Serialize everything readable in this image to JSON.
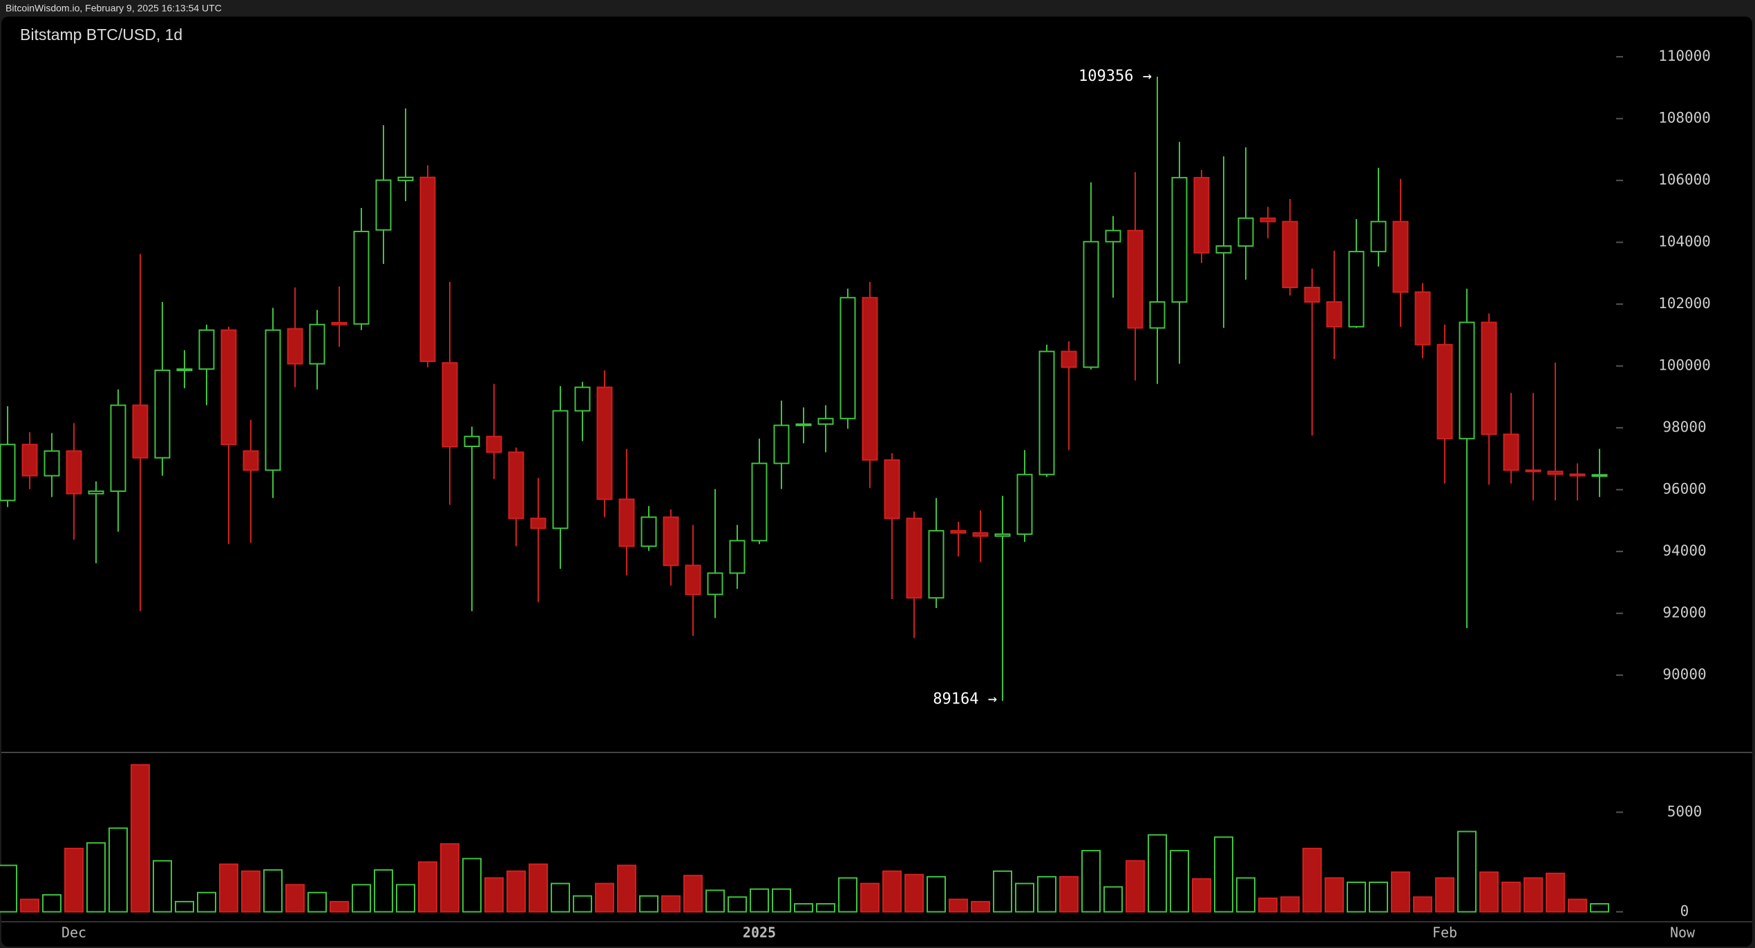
{
  "chart_data": {
    "type": "candlestick",
    "source": "BitcoinWisdom.io, February 9, 2025 16:13:54 UTC",
    "title": "Bitstamp BTC/USD, 1d",
    "categories": [
      null,
      null,
      null,
      "Dec",
      null,
      null,
      null,
      null,
      null,
      null,
      null,
      null,
      null,
      null,
      null,
      null,
      null,
      null,
      null,
      null,
      null,
      null,
      null,
      null,
      null,
      null,
      null,
      null,
      null,
      null,
      null,
      null,
      null,
      null,
      "2025",
      null,
      null,
      null,
      null,
      null,
      null,
      null,
      null,
      null,
      null,
      null,
      null,
      null,
      null,
      null,
      null,
      null,
      null,
      null,
      null,
      null,
      null,
      null,
      null,
      null,
      null,
      null,
      null,
      null,
      null,
      "Feb",
      null,
      null,
      null,
      null,
      null,
      null,
      null
    ],
    "now_label": "Now",
    "open": [
      95650,
      97460,
      96450,
      97250,
      95870,
      95950,
      98730,
      97030,
      99860,
      99900,
      101160,
      97250,
      96630,
      101200,
      100070,
      101400,
      101360,
      104400,
      106000,
      106100,
      100100,
      97400,
      97720,
      97210,
      95070,
      94750,
      98550,
      99310,
      95690,
      94170,
      95110,
      93550,
      92610,
      93300,
      94350,
      96850,
      98080,
      98120,
      98300,
      102210,
      96960,
      95070,
      92500,
      94670,
      94600,
      94500,
      94560,
      96490,
      100470,
      99960,
      104020,
      104380,
      101230,
      102070,
      106090,
      103660,
      103880,
      104780,
      104670,
      102540,
      102070,
      101270,
      103700,
      104670,
      102390,
      100690,
      97650,
      101410,
      97790,
      96630,
      96590,
      96500,
      96450
    ],
    "high": [
      98700,
      97860,
      97830,
      98150,
      96270,
      99240,
      103620,
      102070,
      100510,
      101340,
      101270,
      98260,
      101880,
      102540,
      101810,
      102570,
      105110,
      107790,
      108330,
      106490,
      102720,
      98040,
      99420,
      97360,
      96380,
      99350,
      99490,
      99860,
      97320,
      95470,
      95360,
      94860,
      96020,
      94860,
      97650,
      98880,
      98660,
      98730,
      102500,
      102720,
      97180,
      95290,
      95730,
      94960,
      95330,
      95800,
      97280,
      100690,
      100800,
      105940,
      104850,
      106270,
      109356,
      107250,
      106340,
      106780,
      107070,
      105150,
      105400,
      103150,
      103730,
      104750,
      106410,
      106050,
      102680,
      101340,
      102500,
      101700,
      99130,
      99130,
      100110,
      96850,
      97320
    ],
    "low": [
      95440,
      96015,
      95760,
      94380,
      93620,
      94640,
      92070,
      96450,
      99280,
      98730,
      94240,
      94280,
      95730,
      99310,
      99240,
      100620,
      101160,
      103300,
      105330,
      99960,
      95510,
      92070,
      96340,
      94170,
      92360,
      93440,
      97570,
      95110,
      93230,
      94020,
      92900,
      91270,
      91850,
      92790,
      94240,
      96020,
      97500,
      97210,
      97970,
      96050,
      92460,
      91200,
      92170,
      93840,
      93660,
      89164,
      94310,
      96410,
      97280,
      99890,
      102210,
      99530,
      99420,
      100070,
      103330,
      101230,
      102790,
      104130,
      102280,
      97750,
      100220,
      101230,
      103220,
      101270,
      100250,
      96200,
      91520,
      96160,
      96200,
      95650,
      95650,
      95650,
      95760
    ],
    "close": [
      97460,
      96450,
      97250,
      95870,
      95950,
      98730,
      97030,
      99860,
      99900,
      101160,
      97460,
      96630,
      101160,
      100070,
      101340,
      101340,
      104350,
      106010,
      106100,
      100150,
      97390,
      97720,
      97210,
      95070,
      94750,
      98550,
      99310,
      95690,
      94170,
      95110,
      93550,
      92610,
      93300,
      94350,
      96850,
      98080,
      98120,
      98300,
      102210,
      96960,
      95070,
      92500,
      94670,
      94600,
      94500,
      94560,
      96490,
      100470,
      99960,
      104020,
      104380,
      101230,
      102070,
      106090,
      103660,
      103880,
      104780,
      104670,
      102540,
      102070,
      101270,
      103700,
      104670,
      102390,
      100690,
      97650,
      101410,
      97790,
      96630,
      96590,
      96500,
      96450,
      96480
    ],
    "volume": [
      2330,
      625,
      850,
      3180,
      3460,
      4200,
      7380,
      2560,
      510,
      965,
      2390,
      2040,
      2100,
      1360,
      965,
      510,
      1360,
      2100,
      1360,
      2500,
      3410,
      2670,
      1700,
      2040,
      2390,
      1420,
      795,
      1420,
      2330,
      795,
      795,
      1820,
      1080,
      740,
      1140,
      1140,
      400,
      400,
      1700,
      1420,
      2040,
      1870,
      1760,
      625,
      510,
      2040,
      1420,
      1760,
      1760,
      3070,
      1250,
      2560,
      3860,
      3070,
      1650,
      3750,
      1700,
      680,
      740,
      3180,
      1700,
      1480,
      1480,
      1990,
      740,
      1700,
      4030,
      1990,
      1480,
      1700,
      1930,
      625,
      400
    ],
    "up_color": "#3fc43f",
    "down_color": "#b31414",
    "ylim": [
      87500,
      111300
    ],
    "yticks": [
      90000,
      92000,
      94000,
      96000,
      98000,
      100000,
      102000,
      104000,
      106000,
      108000,
      110000
    ],
    "volume_ylim": [
      -500,
      8000
    ],
    "volume_ticks": [
      0,
      5000
    ],
    "annotations": [
      {
        "text": "109356 →",
        "value": 109356
      },
      {
        "text": "89164 →",
        "value": 89164
      }
    ],
    "grid": false
  }
}
